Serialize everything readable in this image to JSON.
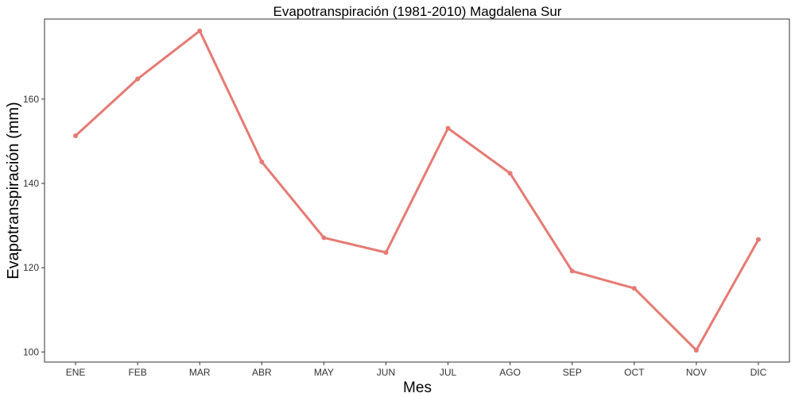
{
  "chart_data": {
    "type": "line",
    "title": "Evapotranspiración (1981-2010)  Magdalena Sur",
    "xlabel": "Mes",
    "ylabel": "Evapotranspiración (mm)",
    "categories": [
      "ENE",
      "FEB",
      "MAR",
      "ABR",
      "MAY",
      "JUN",
      "JUL",
      "AGO",
      "SEP",
      "OCT",
      "NOV",
      "DIC"
    ],
    "series": [
      {
        "values": [
          151.3,
          164.8,
          176.2,
          145.1,
          127.1,
          123.6,
          153.1,
          142.4,
          119.2,
          115.1,
          100.4,
          126.7
        ],
        "color": "#e57a73"
      }
    ],
    "yticks": [
      100,
      120,
      140,
      160
    ],
    "ylim": [
      97.6,
      179.0
    ],
    "grid": false,
    "legend": "none"
  }
}
